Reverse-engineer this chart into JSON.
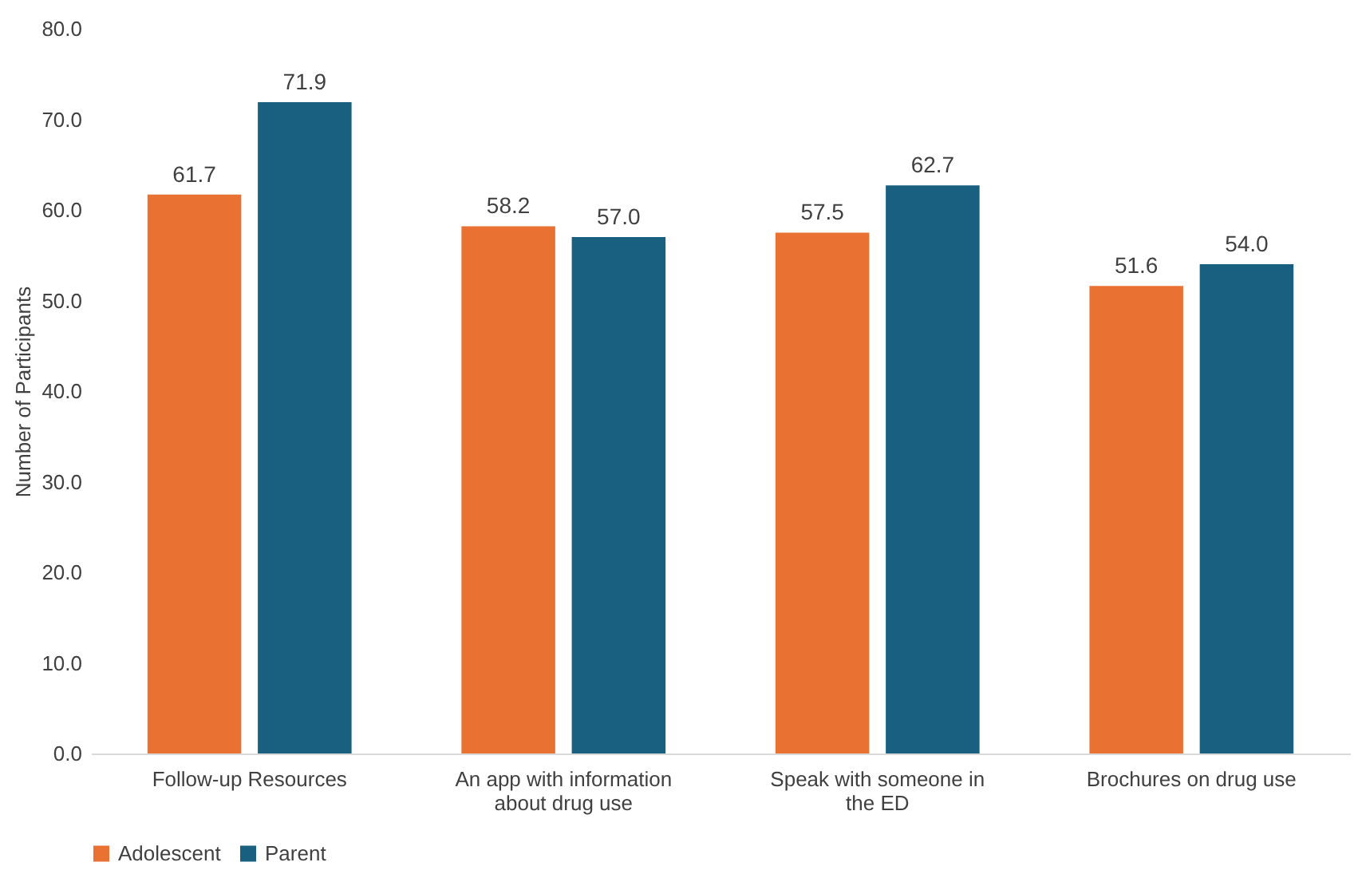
{
  "chart_data": {
    "type": "bar",
    "ylabel": "Number of Participants",
    "categories": [
      "Follow-up Resources",
      "An app with information about drug use",
      "Speak with someone in the ED",
      "Brochures on drug use"
    ],
    "series": [
      {
        "name": "Adolescent",
        "color": "#e97132",
        "values": [
          61.7,
          58.2,
          57.5,
          51.6
        ],
        "value_labels": [
          "61.7",
          "58.2",
          "57.5",
          "51.6"
        ]
      },
      {
        "name": "Parent",
        "color": "#196080",
        "values": [
          71.9,
          57.0,
          62.7,
          54.0
        ],
        "value_labels": [
          "71.9",
          "57.0",
          "62.7",
          "54.0"
        ]
      }
    ],
    "ylim": [
      0,
      80
    ],
    "yticks": [
      {
        "value": 0,
        "label": "0.0"
      },
      {
        "value": 10,
        "label": "10.0"
      },
      {
        "value": 20,
        "label": "20.0"
      },
      {
        "value": 30,
        "label": "30.0"
      },
      {
        "value": 40,
        "label": "40.0"
      },
      {
        "value": 50,
        "label": "50.0"
      },
      {
        "value": 60,
        "label": "60.0"
      },
      {
        "value": 70,
        "label": "70.0"
      },
      {
        "value": 80,
        "label": "80.0"
      }
    ],
    "grid": false,
    "legend": "bottom"
  }
}
